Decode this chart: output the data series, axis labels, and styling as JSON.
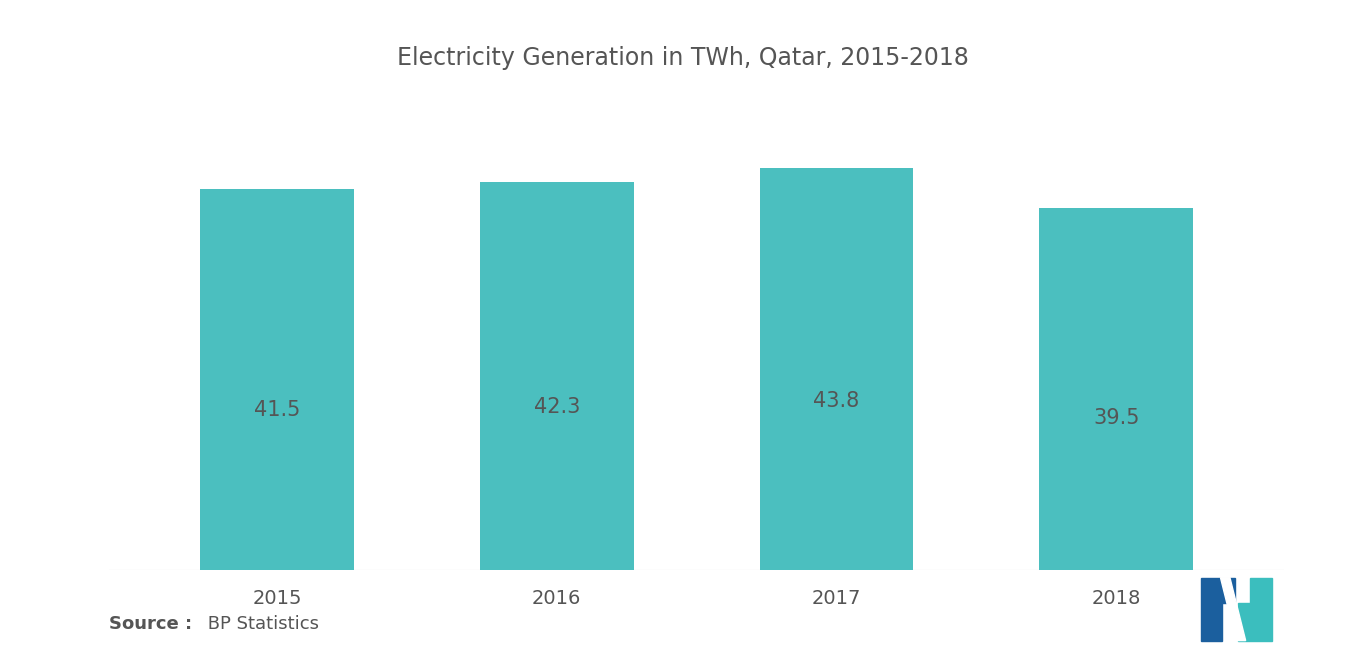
{
  "title": "Electricity Generation in TWh, Qatar, 2015-2018",
  "categories": [
    "2015",
    "2016",
    "2017",
    "2018"
  ],
  "values": [
    41.5,
    42.3,
    43.8,
    39.5
  ],
  "bar_color": "#4BBFBF",
  "label_color": "#555555",
  "title_color": "#555555",
  "bg_color": "#ffffff",
  "bar_label_fontsize": 15,
  "title_fontsize": 17,
  "xtick_fontsize": 14,
  "source_bold": "Source :",
  "source_normal": " BP Statistics",
  "source_fontsize": 13,
  "ylim": [
    0,
    50
  ],
  "bar_width": 0.55,
  "logo_left_color": "#1B5F9E",
  "logo_right_color": "#3BBEBE"
}
